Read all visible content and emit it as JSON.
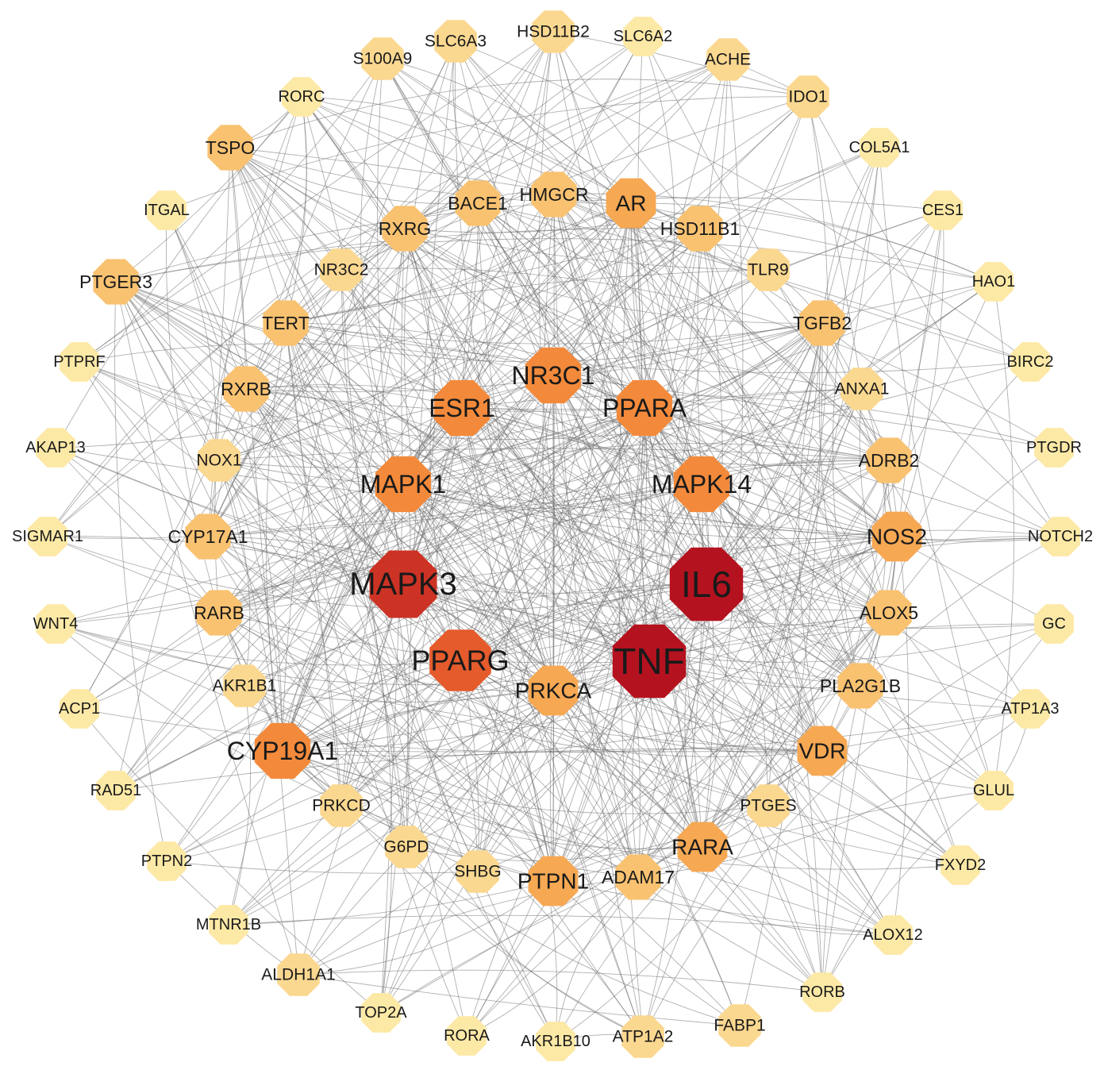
{
  "network": {
    "colors": {
      "tier1": "#fde9a6",
      "tier2": "#fbd890",
      "tier3": "#f9c271",
      "tier4": "#f6a853",
      "tier5": "#f38a3b",
      "tier6": "#e55b2c",
      "tier7": "#cc3324",
      "tier8": "#b5121f",
      "edge": "#6f6f6f"
    },
    "nodes": [
      {
        "id": "SLC6A3",
        "label": "SLC6A3",
        "tier": 2
      },
      {
        "id": "HSD11B2",
        "label": "HSD11B2",
        "tier": 2
      },
      {
        "id": "SLC6A2",
        "label": "SLC6A2",
        "tier": 1
      },
      {
        "id": "ACHE",
        "label": "ACHE",
        "tier": 2
      },
      {
        "id": "S100A9",
        "label": "S100A9",
        "tier": 2
      },
      {
        "id": "RORC",
        "label": "RORC",
        "tier": 1
      },
      {
        "id": "IDO1",
        "label": "IDO1",
        "tier": 2
      },
      {
        "id": "TSPO",
        "label": "TSPO",
        "tier": 3
      },
      {
        "id": "COL5A1",
        "label": "COL5A1",
        "tier": 1
      },
      {
        "id": "ITGAL",
        "label": "ITGAL",
        "tier": 1
      },
      {
        "id": "CES1",
        "label": "CES1",
        "tier": 1
      },
      {
        "id": "HMGCR",
        "label": "HMGCR",
        "tier": 3
      },
      {
        "id": "BACE1",
        "label": "BACE1",
        "tier": 3
      },
      {
        "id": "AR",
        "label": "AR",
        "tier": 4
      },
      {
        "id": "RXRG",
        "label": "RXRG",
        "tier": 3
      },
      {
        "id": "HSD11B1",
        "label": "HSD11B1",
        "tier": 3
      },
      {
        "id": "NR3C2",
        "label": "NR3C2",
        "tier": 2
      },
      {
        "id": "TLR9",
        "label": "TLR9",
        "tier": 2
      },
      {
        "id": "PTGER3",
        "label": "PTGER3",
        "tier": 3
      },
      {
        "id": "HAO1",
        "label": "HAO1",
        "tier": 1
      },
      {
        "id": "TERT",
        "label": "TERT",
        "tier": 3
      },
      {
        "id": "TGFB2",
        "label": "TGFB2",
        "tier": 3
      },
      {
        "id": "PTPRF",
        "label": "PTPRF",
        "tier": 1
      },
      {
        "id": "BIRC2",
        "label": "BIRC2",
        "tier": 1
      },
      {
        "id": "NR3C1",
        "label": "NR3C1",
        "tier": 5
      },
      {
        "id": "RXRB",
        "label": "RXRB",
        "tier": 3
      },
      {
        "id": "ANXA1",
        "label": "ANXA1",
        "tier": 2
      },
      {
        "id": "ESR1",
        "label": "ESR1",
        "tier": 5
      },
      {
        "id": "PPARA",
        "label": "PPARA",
        "tier": 5
      },
      {
        "id": "AKAP13",
        "label": "AKAP13",
        "tier": 1
      },
      {
        "id": "PTGDR",
        "label": "PTGDR",
        "tier": 1
      },
      {
        "id": "NOX1",
        "label": "NOX1",
        "tier": 2
      },
      {
        "id": "ADRB2",
        "label": "ADRB2",
        "tier": 3
      },
      {
        "id": "MAPK1",
        "label": "MAPK1",
        "tier": 5
      },
      {
        "id": "MAPK14",
        "label": "MAPK14",
        "tier": 5
      },
      {
        "id": "SIGMAR1",
        "label": "SIGMAR1",
        "tier": 1
      },
      {
        "id": "CYP17A1",
        "label": "CYP17A1",
        "tier": 3
      },
      {
        "id": "NOS2",
        "label": "NOS2",
        "tier": 4
      },
      {
        "id": "NOTCH2",
        "label": "NOTCH2",
        "tier": 1
      },
      {
        "id": "MAPK3",
        "label": "MAPK3",
        "tier": 7
      },
      {
        "id": "IL6",
        "label": "IL6",
        "tier": 8
      },
      {
        "id": "WNT4",
        "label": "WNT4",
        "tier": 1
      },
      {
        "id": "RARB",
        "label": "RARB",
        "tier": 3
      },
      {
        "id": "ALOX5",
        "label": "ALOX5",
        "tier": 3
      },
      {
        "id": "GC",
        "label": "GC",
        "tier": 1
      },
      {
        "id": "TNF",
        "label": "TNF",
        "tier": 8
      },
      {
        "id": "PPARG",
        "label": "PPARG",
        "tier": 6
      },
      {
        "id": "PRKCA",
        "label": "PRKCA",
        "tier": 4
      },
      {
        "id": "ACP1",
        "label": "ACP1",
        "tier": 1
      },
      {
        "id": "AKR1B1",
        "label": "AKR1B1",
        "tier": 2
      },
      {
        "id": "PLA2G1B",
        "label": "PLA2G1B",
        "tier": 3
      },
      {
        "id": "ATP1A3",
        "label": "ATP1A3",
        "tier": 1
      },
      {
        "id": "CYP19A1",
        "label": "CYP19A1",
        "tier": 5
      },
      {
        "id": "VDR",
        "label": "VDR",
        "tier": 4
      },
      {
        "id": "RAD51",
        "label": "RAD51",
        "tier": 1
      },
      {
        "id": "GLUL",
        "label": "GLUL",
        "tier": 1
      },
      {
        "id": "PRKCD",
        "label": "PRKCD",
        "tier": 2
      },
      {
        "id": "PTGES",
        "label": "PTGES",
        "tier": 2
      },
      {
        "id": "G6PD",
        "label": "G6PD",
        "tier": 2
      },
      {
        "id": "RARA",
        "label": "RARA",
        "tier": 4
      },
      {
        "id": "PTPN2",
        "label": "PTPN2",
        "tier": 1
      },
      {
        "id": "FXYD2",
        "label": "FXYD2",
        "tier": 1
      },
      {
        "id": "SHBG",
        "label": "SHBG",
        "tier": 2
      },
      {
        "id": "PTPN1",
        "label": "PTPN1",
        "tier": 4
      },
      {
        "id": "ADAM17",
        "label": "ADAM17",
        "tier": 3
      },
      {
        "id": "MTNR1B",
        "label": "MTNR1B",
        "tier": 1
      },
      {
        "id": "ALOX12",
        "label": "ALOX12",
        "tier": 1
      },
      {
        "id": "ALDH1A1",
        "label": "ALDH1A1",
        "tier": 2
      },
      {
        "id": "RORB",
        "label": "RORB",
        "tier": 1
      },
      {
        "id": "TOP2A",
        "label": "TOP2A",
        "tier": 1
      },
      {
        "id": "FABP1",
        "label": "FABP1",
        "tier": 2
      },
      {
        "id": "ATP1A2",
        "label": "ATP1A2",
        "tier": 2
      },
      {
        "id": "RORA",
        "label": "RORA",
        "tier": 1
      },
      {
        "id": "AKR1B10",
        "label": "AKR1B10",
        "tier": 1
      }
    ]
  }
}
